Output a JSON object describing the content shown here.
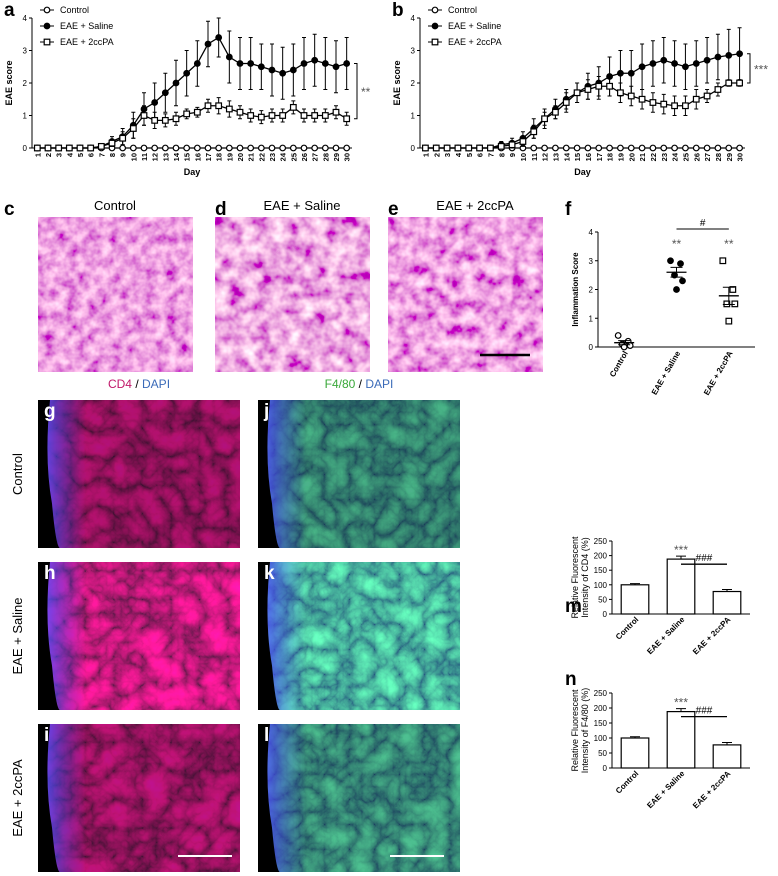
{
  "chart_data": [
    {
      "panel": "a",
      "type": "line",
      "xlabel": "Day",
      "ylabel": "EAE score",
      "legend": "upper left",
      "significance": "**",
      "x": [
        1,
        2,
        3,
        4,
        5,
        6,
        7,
        8,
        9,
        10,
        11,
        12,
        13,
        14,
        15,
        16,
        17,
        18,
        19,
        20,
        21,
        22,
        23,
        24,
        25,
        26,
        27,
        28,
        29,
        30
      ],
      "xlim": [
        0.5,
        30.5
      ],
      "xticks": [
        1,
        2,
        3,
        4,
        5,
        6,
        7,
        8,
        9,
        10,
        11,
        12,
        13,
        14,
        15,
        16,
        17,
        18,
        19,
        20,
        21,
        22,
        23,
        24,
        25,
        26,
        27,
        28,
        29,
        30
      ],
      "ylim": [
        0,
        4
      ],
      "yticks": [
        0,
        1,
        2,
        3,
        4
      ],
      "series": [
        {
          "name": "Control",
          "color": "#000000",
          "marker": "open-circle",
          "values": [
            0,
            0,
            0,
            0,
            0,
            0,
            0,
            0,
            0,
            0,
            0,
            0,
            0,
            0,
            0,
            0,
            0,
            0,
            0,
            0,
            0,
            0,
            0,
            0,
            0,
            0,
            0,
            0,
            0,
            0
          ]
        },
        {
          "name": "EAE + Saline",
          "color": "#000000",
          "marker": "filled-circle",
          "values": [
            0,
            0,
            0,
            0,
            0,
            0,
            0.05,
            0.2,
            0.35,
            0.7,
            1.2,
            1.4,
            1.7,
            2.0,
            2.3,
            2.6,
            3.2,
            3.4,
            2.8,
            2.6,
            2.6,
            2.5,
            2.4,
            2.3,
            2.4,
            2.6,
            2.7,
            2.6,
            2.5,
            2.6
          ],
          "errors": [
            0,
            0,
            0,
            0,
            0,
            0,
            0.05,
            0.15,
            0.25,
            0.4,
            0.5,
            0.6,
            0.6,
            0.7,
            0.7,
            0.7,
            0.7,
            0.6,
            0.8,
            0.8,
            0.8,
            0.7,
            0.8,
            0.8,
            0.8,
            0.8,
            0.8,
            0.8,
            0.8,
            0.8
          ]
        },
        {
          "name": "EAE + 2ccPA",
          "color": "#000000",
          "marker": "open-square",
          "values": [
            0,
            0,
            0,
            0,
            0,
            0,
            0.05,
            0.15,
            0.3,
            0.6,
            1.0,
            0.85,
            0.85,
            0.9,
            1.05,
            1.1,
            1.3,
            1.3,
            1.2,
            1.1,
            1.0,
            0.95,
            1.0,
            1.0,
            1.25,
            1.0,
            1.0,
            1.0,
            1.1,
            0.9
          ],
          "errors": [
            0,
            0,
            0,
            0,
            0,
            0,
            0.05,
            0.1,
            0.2,
            0.3,
            0.3,
            0.25,
            0.2,
            0.2,
            0.15,
            0.15,
            0.2,
            0.25,
            0.25,
            0.2,
            0.2,
            0.2,
            0.2,
            0.2,
            0.2,
            0.2,
            0.2,
            0.2,
            0.2,
            0.2
          ]
        }
      ]
    },
    {
      "panel": "b",
      "type": "line",
      "xlabel": "Day",
      "ylabel": "EAE score",
      "legend": "upper left",
      "significance": "***",
      "x": [
        1,
        2,
        3,
        4,
        5,
        6,
        7,
        8,
        9,
        10,
        11,
        12,
        13,
        14,
        15,
        16,
        17,
        18,
        19,
        20,
        21,
        22,
        23,
        24,
        25,
        26,
        27,
        28,
        29,
        30
      ],
      "xlim": [
        0.5,
        30.5
      ],
      "xticks": [
        1,
        2,
        3,
        4,
        5,
        6,
        7,
        8,
        9,
        10,
        11,
        12,
        13,
        14,
        15,
        16,
        17,
        18,
        19,
        20,
        21,
        22,
        23,
        24,
        25,
        26,
        27,
        28,
        29,
        30
      ],
      "ylim": [
        0,
        4
      ],
      "yticks": [
        0,
        1,
        2,
        3,
        4
      ],
      "series": [
        {
          "name": "Control",
          "color": "#000000",
          "marker": "open-circle",
          "values": [
            0,
            0,
            0,
            0,
            0,
            0,
            0,
            0,
            0,
            0,
            0,
            0,
            0,
            0,
            0,
            0,
            0,
            0,
            0,
            0,
            0,
            0,
            0,
            0,
            0,
            0,
            0,
            0,
            0,
            0
          ]
        },
        {
          "name": "EAE + Saline",
          "color": "#000000",
          "marker": "filled-circle",
          "values": [
            0,
            0,
            0,
            0,
            0,
            0,
            0,
            0.1,
            0.15,
            0.3,
            0.6,
            0.9,
            1.2,
            1.5,
            1.7,
            1.9,
            2.0,
            2.2,
            2.3,
            2.3,
            2.5,
            2.6,
            2.7,
            2.6,
            2.5,
            2.6,
            2.7,
            2.8,
            2.85,
            2.9
          ],
          "errors": [
            0,
            0,
            0,
            0,
            0,
            0,
            0,
            0.1,
            0.15,
            0.2,
            0.3,
            0.3,
            0.3,
            0.3,
            0.3,
            0.4,
            0.5,
            0.6,
            0.7,
            0.7,
            0.7,
            0.7,
            0.7,
            0.7,
            0.7,
            0.7,
            0.7,
            0.7,
            0.8,
            0.8
          ]
        },
        {
          "name": "EAE + 2ccPA",
          "color": "#000000",
          "marker": "open-square",
          "values": [
            0,
            0,
            0,
            0,
            0,
            0,
            0,
            0.05,
            0.1,
            0.2,
            0.5,
            0.9,
            1.1,
            1.4,
            1.7,
            1.8,
            1.9,
            1.9,
            1.7,
            1.6,
            1.5,
            1.4,
            1.35,
            1.3,
            1.3,
            1.5,
            1.6,
            1.8,
            2.0,
            2.0
          ],
          "errors": [
            0,
            0,
            0,
            0,
            0,
            0,
            0,
            0.05,
            0.1,
            0.15,
            0.2,
            0.2,
            0.2,
            0.3,
            0.3,
            0.3,
            0.3,
            0.3,
            0.3,
            0.3,
            0.3,
            0.3,
            0.3,
            0.3,
            0.3,
            0.3,
            0.2,
            0.2,
            0.1,
            0.1
          ]
        }
      ]
    },
    {
      "panel": "f",
      "type": "dot",
      "ylabel": "Inflammation Score",
      "color": "#000000",
      "categories": [
        "Control",
        "EAE + Saline",
        "EAE + 2ccPA"
      ],
      "markers": [
        "open-circle",
        "filled-circle",
        "open-square"
      ],
      "points": [
        [
          0.4,
          0.2,
          0.1,
          0.05,
          0.0
        ],
        [
          3.0,
          2.9,
          2.5,
          2.3,
          2.0
        ],
        [
          3.0,
          2.0,
          1.5,
          1.5,
          0.9
        ]
      ],
      "means": [
        0.15,
        2.6,
        1.78
      ],
      "errors": [
        0.07,
        0.17,
        0.3
      ],
      "significance": [
        null,
        "**",
        "**"
      ],
      "comparison": "#",
      "ylim": [
        0,
        4
      ],
      "yticks": [
        0,
        1,
        2,
        3,
        4
      ]
    },
    {
      "panel": "m",
      "type": "bar",
      "ylabel": [
        "Relative Fluorescent",
        "Intensity of CD4 (%)"
      ],
      "color": "#ffffff",
      "categories": [
        "Control",
        "EAE + Saline",
        "EAE + 2ccPA"
      ],
      "values": [
        100,
        188,
        77
      ],
      "errors": [
        4,
        10,
        7
      ],
      "significance": [
        null,
        "***",
        null
      ],
      "comparison": "###",
      "ylim": [
        0,
        250
      ],
      "yticks": [
        0,
        50,
        100,
        150,
        200,
        250
      ]
    },
    {
      "panel": "n",
      "type": "bar",
      "ylabel": [
        "Relative Fluorescent",
        "Intensity of F4/80 (%)"
      ],
      "color": "#ffffff",
      "categories": [
        "Control",
        "EAE + Saline",
        "EAE + 2ccPA"
      ],
      "values": [
        100,
        188,
        77
      ],
      "errors": [
        4,
        10,
        8
      ],
      "significance": [
        null,
        "***",
        null
      ],
      "comparison": "###",
      "ylim": [
        0,
        250
      ],
      "yticks": [
        0,
        50,
        100,
        150,
        200,
        250
      ]
    }
  ],
  "figure": {
    "histology": [
      {
        "letter": "c",
        "title": "Control"
      },
      {
        "letter": "d",
        "title": "EAE + Saline"
      },
      {
        "letter": "e",
        "title": "EAE + 2ccPA"
      }
    ],
    "fluorescence": {
      "columns": [
        {
          "marker": "CD4",
          "separator": "/",
          "stain": "DAPI"
        },
        {
          "marker": "F4/80",
          "separator": "/",
          "stain": "DAPI"
        }
      ],
      "rows": [
        "Control",
        "EAE + Saline",
        "EAE + 2ccPA"
      ],
      "letters": [
        [
          "g",
          "j"
        ],
        [
          "h",
          "k"
        ],
        [
          "i",
          "l"
        ]
      ]
    }
  }
}
